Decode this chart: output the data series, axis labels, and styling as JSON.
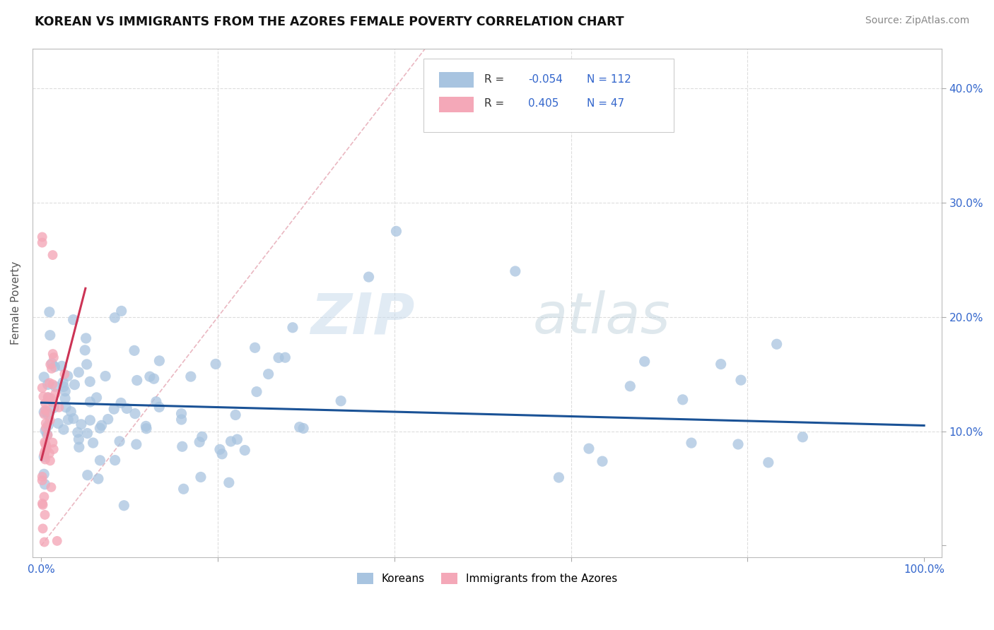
{
  "title": "KOREAN VS IMMIGRANTS FROM THE AZORES FEMALE POVERTY CORRELATION CHART",
  "source": "Source: ZipAtlas.com",
  "ylabel": "Female Poverty",
  "ytick_positions": [
    0.0,
    0.1,
    0.2,
    0.3,
    0.4
  ],
  "ytick_labels_right": [
    "",
    "10.0%",
    "20.0%",
    "30.0%",
    "40.0%"
  ],
  "xtick_positions": [
    0.0,
    0.2,
    0.4,
    0.6,
    0.8,
    1.0
  ],
  "xtick_labels": [
    "0.0%",
    "",
    "",
    "",
    "",
    "100.0%"
  ],
  "koreans_R": -0.054,
  "koreans_N": 112,
  "azores_R": 0.405,
  "azores_N": 47,
  "legend_label_1": "Koreans",
  "legend_label_2": "Immigrants from the Azores",
  "scatter_color_korean": "#a8c4e0",
  "scatter_color_azores": "#f4a8b8",
  "line_color_korean": "#1a5296",
  "line_color_azores": "#cc3355",
  "diagonal_color": "#e8b0bb",
  "watermark_zip": "ZIP",
  "watermark_atlas": "atlas",
  "background_color": "#ffffff",
  "xlim": [
    -0.01,
    1.02
  ],
  "ylim": [
    -0.01,
    0.435
  ],
  "korean_line_x0": 0.0,
  "korean_line_y0": 0.125,
  "korean_line_x1": 1.0,
  "korean_line_y1": 0.105,
  "azores_line_x0": 0.0,
  "azores_line_y0": 0.075,
  "azores_line_x1": 0.05,
  "azores_line_y1": 0.225
}
